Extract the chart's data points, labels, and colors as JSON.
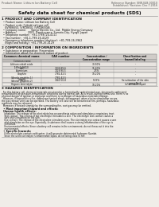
{
  "bg_color": "#f0ede8",
  "title": "Safety data sheet for chemical products (SDS)",
  "header_left": "Product Name: Lithium Ion Battery Cell",
  "header_right_line1": "Reference Number: SNR-048-00010",
  "header_right_line2": "Established / Revision: Dec.7.2016",
  "section1_title": "1 PRODUCT AND COMPANY IDENTIFICATION",
  "section1_lines": [
    "  • Product name: Lithium Ion Battery Cell",
    "  • Product code: Cylindrical-type cell",
    "    (IVR86650, IVR18650, IVR18650A)",
    "  • Company name:      Sanyo Electric Co., Ltd.  Mobile Energy Company",
    "  • Address:              2001  Kamitoyama, Sumoto-City, Hyogo, Japan",
    "  • Telephone number:  +81-(799)-24-4111",
    "  • Fax number:  +81-1-799-26-4129",
    "  • Emergency telephone number (daytime): +81-799-26-3962",
    "    (Night and holiday): +81-799-26-4129"
  ],
  "section2_title": "2 COMPOSITION / INFORMATION ON INGREDIENTS",
  "section2_intro": "  • Substance or preparation: Preparation",
  "section2_sub": "  • Information about the chemical nature of product:",
  "col_header1": "Common chemical name",
  "col_header2": "CAS number",
  "col_header3": "Concentration /\nConcentration range",
  "col_header4": "Classification and\nhazard labeling",
  "col_sub1": "Common name",
  "table_rows": [
    [
      "Lithium cobalt oxide\n(LiMnCoNiO2)",
      "-",
      "30-50%",
      "-"
    ],
    [
      "Iron",
      "7439-89-6",
      "15-20%",
      "-"
    ],
    [
      "Aluminium",
      "7429-90-5",
      "2-5%",
      "-"
    ],
    [
      "Graphite\n(Anode graphite-1)\n(Anode graphite-2)",
      "7782-42-5\n7782-42-5",
      "10-20%",
      "-"
    ],
    [
      "Copper",
      "7440-50-8",
      "5-15%",
      "Sensitization of the skin\ngroup No.2"
    ],
    [
      "Organic electrolyte",
      "-",
      "10-20%",
      "Inflammable liquid"
    ]
  ],
  "section3_title": "3 HAZARDS IDENTIFICATION",
  "section3_para1": "  For this battery cell, chemical materials are stored in a hermetically sealed metal case, designed to withstand",
  "section3_para2": "temperatures by pressure-temperature conditions during normal use. As a result, during normal use, there is no",
  "section3_para3": "physical danger of ignition or explosion and there is no danger of hazardous materials leakage.",
  "section3_para4": "  However, if exposed to a fire, added mechanical shock, decomposed, when electro stimulation occurs,",
  "section3_para5": "the gas release vent can be operated. The battery cell case will be breached at fire, perhaps, hazardous",
  "section3_para6": "materials may be released.",
  "section3_para7": "  Moreover, if heated strongly by the surrounding fire, soot gas may be emitted.",
  "bullet1": "  • Most important hazard and effects:",
  "human_health": "  Human health effects:",
  "inhalation": "    Inhalation: The release of the electrolyte has an anesthesia action and stimulates a respiratory tract.",
  "skin1": "    Skin contact: The release of the electrolyte stimulates a skin. The electrolyte skin contact causes a",
  "skin2": "    sore and stimulation on the skin.",
  "eye1": "    Eye contact: The release of the electrolyte stimulates eyes. The electrolyte eye contact causes a sore",
  "eye2": "    and stimulation on the eye. Especially, a substance that causes a strong inflammation of the eye is",
  "eye3": "    contained.",
  "env1": "    Environmental effects: Since a battery cell remains in the environment, do not throw out it into the",
  "env2": "    environment.",
  "bullet2": "  • Specific hazards:",
  "spec1": "    If the electrolyte contacts with water, it will generate detrimental hydrogen fluoride.",
  "spec2": "    Since the used electrolyte is inflammable liquid, do not bring close to fire.",
  "divider_color": "#999999",
  "header_bg": "#d0ccc8",
  "row_bg_even": "#e8e4e0",
  "row_bg_odd": "#f0ede8",
  "text_color": "#111111",
  "gray_text": "#555555"
}
